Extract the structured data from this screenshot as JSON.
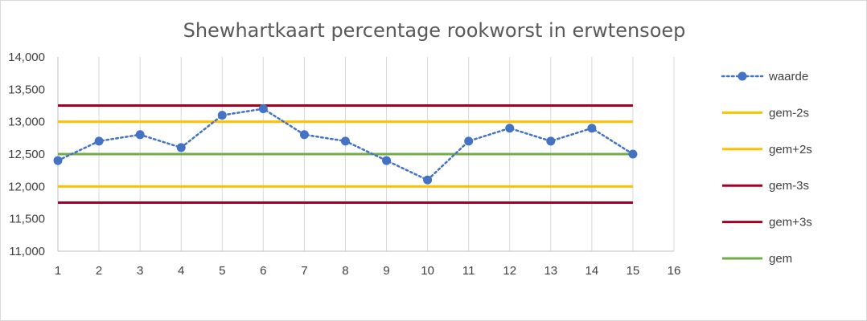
{
  "chart_data": {
    "type": "line",
    "title": "Shewhartkaart percentage rookworst in erwtensoep",
    "xlabel": "",
    "ylabel": "",
    "xlim": [
      1,
      16
    ],
    "ylim": [
      11.0,
      14.0
    ],
    "x_ticks": [
      "1",
      "2",
      "3",
      "4",
      "5",
      "6",
      "7",
      "8",
      "9",
      "10",
      "11",
      "12",
      "13",
      "14",
      "15",
      "16"
    ],
    "y_ticks": [
      "11,000",
      "11,500",
      "12,000",
      "12,500",
      "13,000",
      "13,500",
      "14,000"
    ],
    "y_tick_values": [
      11.0,
      11.5,
      12.0,
      12.5,
      13.0,
      13.5,
      14.0
    ],
    "grid": "vertical",
    "legend_position": "right",
    "series": [
      {
        "name": "waarde",
        "style": "dotted-markers",
        "color": "#4472c4",
        "x": [
          1,
          2,
          3,
          4,
          5,
          6,
          7,
          8,
          9,
          10,
          11,
          12,
          13,
          14,
          15
        ],
        "values": [
          12.4,
          12.7,
          12.8,
          12.6,
          13.1,
          13.2,
          12.8,
          12.7,
          12.4,
          12.1,
          12.7,
          12.9,
          12.7,
          12.9,
          12.5
        ]
      },
      {
        "name": "gem-2s",
        "style": "solid",
        "color": "#ffc000",
        "x": [
          1,
          15
        ],
        "values": [
          12.0,
          12.0
        ]
      },
      {
        "name": "gem+2s",
        "style": "solid",
        "color": "#ffc000",
        "x": [
          1,
          15
        ],
        "values": [
          13.0,
          13.0
        ]
      },
      {
        "name": "gem-3s",
        "style": "solid",
        "color": "#a50021",
        "x": [
          1,
          15
        ],
        "values": [
          11.75,
          11.75
        ]
      },
      {
        "name": "gem+3s",
        "style": "solid",
        "color": "#a50021",
        "x": [
          1,
          15
        ],
        "values": [
          13.25,
          13.25
        ]
      },
      {
        "name": "gem",
        "style": "solid",
        "color": "#70ad47",
        "x": [
          1,
          15
        ],
        "values": [
          12.5,
          12.5
        ]
      }
    ]
  }
}
